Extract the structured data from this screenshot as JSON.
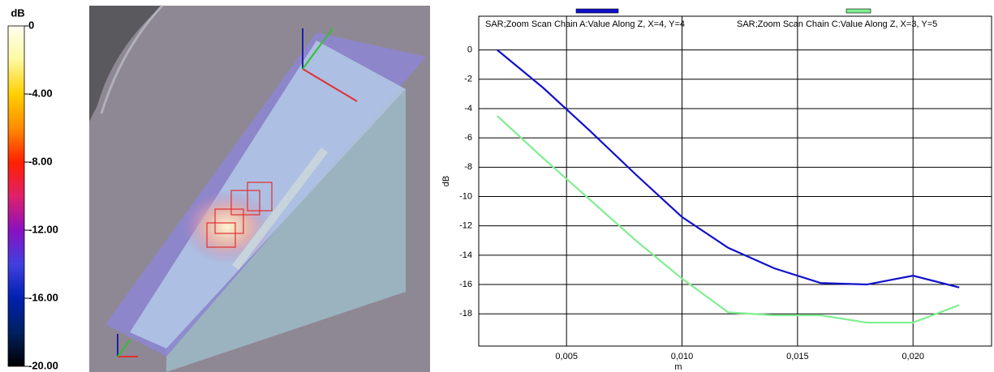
{
  "chart_data": [
    {
      "type": "colorbar",
      "title": "dB",
      "ylim": [
        -20,
        0
      ],
      "yticks": [
        0,
        {
          "value": -4,
          "label": "-4.00"
        },
        {
          "value": -8,
          "label": "-8.00"
        },
        {
          "value": -12,
          "label": "-12.00"
        },
        {
          "value": -16,
          "label": "-16.00"
        },
        {
          "value": -20,
          "label": "-20.00"
        }
      ],
      "colors": [
        "#fffff0",
        "#fff8a0",
        "#ffd000",
        "#ff8c00",
        "#ff2000",
        "#e0206a",
        "#8a10c0",
        "#4040e0",
        "#0020b0",
        "#002060",
        "#000000"
      ]
    },
    {
      "type": "line",
      "xlabel": "m",
      "ylabel": "dB",
      "x": [
        0.002,
        0.004,
        0.006,
        0.008,
        0.01,
        0.012,
        0.014,
        0.016,
        0.018,
        0.02,
        0.022
      ],
      "series": [
        {
          "name": "SAR;Zoom Scan Chain A:Value Along Z, X=4, Y=4",
          "color": "#1010cc",
          "values": [
            0,
            -2.6,
            -5.5,
            -8.5,
            -11.4,
            -13.5,
            -14.9,
            -15.9,
            -16.0,
            -15.4,
            -16.2
          ]
        },
        {
          "name": "SAR;Zoom Scan Chain C:Value Along Z, X=3, Y=5",
          "color": "#80ee90",
          "values": [
            -4.5,
            -7.4,
            -10.2,
            -13.0,
            -15.6,
            -17.9,
            -18.1,
            -18.1,
            -18.6,
            -18.6,
            -17.4
          ]
        }
      ],
      "xlim": [
        0.0012,
        0.0234
      ],
      "ylim": [
        -20.2,
        2.3
      ],
      "xticks": [
        {
          "value": 0.005,
          "label": "0,005"
        },
        {
          "value": 0.01,
          "label": "0,010"
        },
        {
          "value": 0.015,
          "label": "0,015"
        },
        {
          "value": 0.02,
          "label": "0,020"
        }
      ],
      "yticks": [
        0,
        -2,
        -4,
        -6,
        -8,
        -10,
        -12,
        -14,
        -16,
        -18
      ],
      "grid": true
    }
  ]
}
